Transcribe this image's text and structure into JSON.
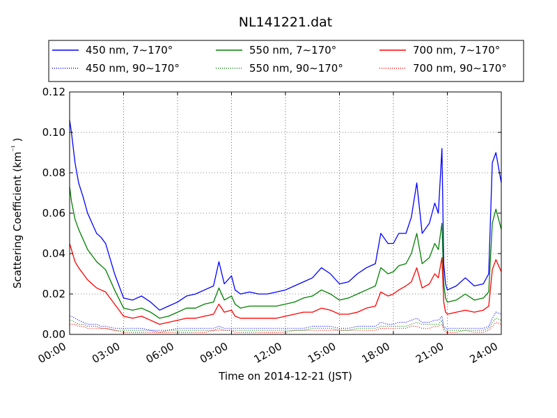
{
  "chart_data": {
    "type": "line",
    "title": "NL141221.dat",
    "xlabel": "Time on 2014-12-21 (JST)",
    "ylabel": "Scattering Coefficient (km⁻¹)",
    "xlim": [
      0,
      24
    ],
    "ylim": [
      0,
      0.12
    ],
    "x_ticks": [
      0,
      3,
      6,
      9,
      12,
      15,
      18,
      21,
      24
    ],
    "x_tick_labels": [
      "00:00",
      "03:00",
      "06:00",
      "09:00",
      "12:00",
      "15:00",
      "18:00",
      "21:00",
      "24:00"
    ],
    "y_ticks": [
      0,
      0.02,
      0.04,
      0.06,
      0.08,
      0.1,
      0.12
    ],
    "y_tick_labels": [
      "0.00",
      "0.02",
      "0.04",
      "0.06",
      "0.08",
      "0.10",
      "0.12"
    ],
    "grid": true,
    "legend_position": "top",
    "x": [
      0,
      0.1,
      0.3,
      0.5,
      0.75,
      1,
      1.25,
      1.5,
      1.75,
      2,
      2.5,
      3,
      3.5,
      4,
      4.5,
      5,
      5.5,
      6,
      6.5,
      7,
      7.5,
      8,
      8.3,
      8.6,
      9,
      9.2,
      9.5,
      10,
      10.5,
      11,
      11.5,
      12,
      12.5,
      13,
      13.5,
      14,
      14.5,
      15,
      15.5,
      16,
      16.5,
      17,
      17.3,
      17.7,
      18,
      18.3,
      18.7,
      19,
      19.3,
      19.6,
      20,
      20.3,
      20.5,
      20.7,
      20.8,
      20.9,
      21,
      21.5,
      22,
      22.5,
      23,
      23.3,
      23.5,
      23.7,
      24
    ],
    "series": [
      {
        "name": "450 nm, 7∼170°",
        "color": "#0000ff",
        "style": "solid",
        "values": [
          0.106,
          0.1,
          0.085,
          0.075,
          0.068,
          0.06,
          0.055,
          0.05,
          0.048,
          0.045,
          0.03,
          0.018,
          0.017,
          0.019,
          0.016,
          0.012,
          0.014,
          0.016,
          0.019,
          0.02,
          0.022,
          0.024,
          0.036,
          0.025,
          0.029,
          0.022,
          0.02,
          0.021,
          0.02,
          0.02,
          0.021,
          0.022,
          0.024,
          0.026,
          0.028,
          0.033,
          0.03,
          0.025,
          0.026,
          0.03,
          0.033,
          0.035,
          0.05,
          0.045,
          0.045,
          0.05,
          0.05,
          0.058,
          0.075,
          0.05,
          0.055,
          0.065,
          0.06,
          0.092,
          0.035,
          0.025,
          0.022,
          0.024,
          0.028,
          0.024,
          0.025,
          0.03,
          0.085,
          0.09,
          0.075
        ]
      },
      {
        "name": "450 nm, 90∼170°",
        "color": "#0000ff",
        "style": "dotted",
        "values": [
          0.009,
          0.009,
          0.008,
          0.007,
          0.006,
          0.005,
          0.005,
          0.005,
          0.004,
          0.004,
          0.003,
          0.003,
          0.003,
          0.003,
          0.002,
          0.002,
          0.002,
          0.003,
          0.003,
          0.003,
          0.003,
          0.003,
          0.004,
          0.003,
          0.003,
          0.003,
          0.003,
          0.003,
          0.003,
          0.003,
          0.003,
          0.003,
          0.003,
          0.003,
          0.004,
          0.004,
          0.004,
          0.003,
          0.003,
          0.004,
          0.004,
          0.004,
          0.006,
          0.005,
          0.005,
          0.006,
          0.006,
          0.007,
          0.008,
          0.006,
          0.006,
          0.007,
          0.007,
          0.009,
          0.004,
          0.003,
          0.003,
          0.003,
          0.003,
          0.003,
          0.003,
          0.004,
          0.008,
          0.011,
          0.01
        ]
      },
      {
        "name": "550 nm, 7∼170°",
        "color": "#008000",
        "style": "solid",
        "values": [
          0.073,
          0.066,
          0.057,
          0.052,
          0.047,
          0.042,
          0.039,
          0.036,
          0.034,
          0.032,
          0.022,
          0.013,
          0.012,
          0.013,
          0.011,
          0.008,
          0.009,
          0.011,
          0.013,
          0.013,
          0.015,
          0.016,
          0.023,
          0.017,
          0.019,
          0.015,
          0.013,
          0.014,
          0.014,
          0.014,
          0.014,
          0.015,
          0.016,
          0.018,
          0.019,
          0.022,
          0.02,
          0.017,
          0.018,
          0.02,
          0.022,
          0.024,
          0.033,
          0.03,
          0.031,
          0.034,
          0.035,
          0.04,
          0.05,
          0.035,
          0.038,
          0.045,
          0.042,
          0.055,
          0.025,
          0.018,
          0.016,
          0.017,
          0.02,
          0.017,
          0.018,
          0.021,
          0.055,
          0.062,
          0.052
        ]
      },
      {
        "name": "550 nm, 90∼170°",
        "color": "#008000",
        "style": "dotted",
        "values": [
          0.007,
          0.007,
          0.006,
          0.005,
          0.005,
          0.004,
          0.004,
          0.004,
          0.003,
          0.003,
          0.002,
          0.002,
          0.002,
          0.002,
          0.002,
          0.001,
          0.002,
          0.002,
          0.002,
          0.002,
          0.002,
          0.002,
          0.003,
          0.002,
          0.002,
          0.002,
          0.002,
          0.002,
          0.002,
          0.002,
          0.002,
          0.002,
          0.002,
          0.002,
          0.003,
          0.003,
          0.003,
          0.002,
          0.002,
          0.003,
          0.003,
          0.003,
          0.004,
          0.004,
          0.004,
          0.004,
          0.004,
          0.005,
          0.006,
          0.005,
          0.005,
          0.005,
          0.005,
          0.007,
          0.003,
          0.002,
          0.002,
          0.002,
          0.002,
          0.002,
          0.002,
          0.003,
          0.006,
          0.008,
          0.007
        ]
      },
      {
        "name": "700 nm, 7∼170°",
        "color": "#ff0000",
        "style": "solid",
        "values": [
          0.045,
          0.042,
          0.036,
          0.033,
          0.03,
          0.027,
          0.025,
          0.023,
          0.022,
          0.021,
          0.015,
          0.009,
          0.008,
          0.009,
          0.007,
          0.005,
          0.006,
          0.007,
          0.008,
          0.008,
          0.009,
          0.01,
          0.015,
          0.011,
          0.012,
          0.009,
          0.008,
          0.008,
          0.008,
          0.008,
          0.008,
          0.009,
          0.01,
          0.011,
          0.011,
          0.013,
          0.012,
          0.01,
          0.01,
          0.011,
          0.013,
          0.014,
          0.021,
          0.019,
          0.02,
          0.022,
          0.024,
          0.026,
          0.033,
          0.023,
          0.025,
          0.03,
          0.028,
          0.038,
          0.016,
          0.011,
          0.01,
          0.011,
          0.012,
          0.011,
          0.012,
          0.014,
          0.032,
          0.037,
          0.031
        ]
      },
      {
        "name": "700 nm, 90∼170°",
        "color": "#ff0000",
        "style": "dotted",
        "values": [
          0.005,
          0.005,
          0.005,
          0.004,
          0.004,
          0.003,
          0.003,
          0.003,
          0.003,
          0.003,
          0.002,
          0.001,
          0.001,
          0.001,
          0.001,
          0.001,
          0.001,
          0.001,
          0.001,
          0.001,
          0.001,
          0.002,
          0.002,
          0.002,
          0.002,
          0.001,
          0.001,
          0.001,
          0.001,
          0.001,
          0.001,
          0.001,
          0.002,
          0.002,
          0.002,
          0.002,
          0.002,
          0.002,
          0.002,
          0.002,
          0.002,
          0.002,
          0.003,
          0.003,
          0.003,
          0.003,
          0.003,
          0.004,
          0.004,
          0.003,
          0.003,
          0.004,
          0.004,
          0.005,
          0.002,
          0.001,
          0.001,
          0.001,
          0.002,
          0.001,
          0.001,
          0.002,
          0.004,
          0.006,
          0.005
        ]
      }
    ]
  }
}
